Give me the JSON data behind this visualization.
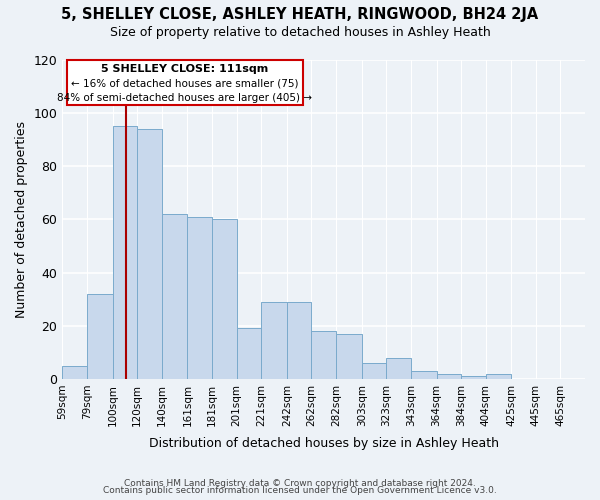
{
  "title": "5, SHELLEY CLOSE, ASHLEY HEATH, RINGWOOD, BH24 2JA",
  "subtitle": "Size of property relative to detached houses in Ashley Heath",
  "xlabel": "Distribution of detached houses by size in Ashley Heath",
  "ylabel": "Number of detached properties",
  "bar_color": "#c8d8ec",
  "bar_edge_color": "#7aaacc",
  "bg_color": "#edf2f7",
  "grid_color": "#ffffff",
  "bin_labels": [
    "59sqm",
    "79sqm",
    "100sqm",
    "120sqm",
    "140sqm",
    "161sqm",
    "181sqm",
    "201sqm",
    "221sqm",
    "242sqm",
    "262sqm",
    "282sqm",
    "303sqm",
    "323sqm",
    "343sqm",
    "364sqm",
    "384sqm",
    "404sqm",
    "425sqm",
    "445sqm",
    "465sqm"
  ],
  "bar_heights": [
    5,
    32,
    95,
    94,
    62,
    61,
    60,
    19,
    29,
    29,
    18,
    17,
    6,
    8,
    3,
    2,
    1,
    2,
    0,
    0,
    0
  ],
  "ylim": [
    0,
    120
  ],
  "yticks": [
    0,
    20,
    40,
    60,
    80,
    100,
    120
  ],
  "property_line_label": "5 SHELLEY CLOSE: 111sqm",
  "annotation_line1": "← 16% of detached houses are smaller (75)",
  "annotation_line2": "84% of semi-detached houses are larger (405) →",
  "vline_color": "#aa0000",
  "annotation_box_edge": "#cc0000",
  "footer1": "Contains HM Land Registry data © Crown copyright and database right 2024.",
  "footer2": "Contains public sector information licensed under the Open Government Licence v3.0.",
  "bin_edges": [
    59,
    79,
    100,
    120,
    140,
    161,
    181,
    201,
    221,
    242,
    262,
    282,
    303,
    323,
    343,
    364,
    384,
    404,
    425,
    445,
    465,
    485
  ]
}
